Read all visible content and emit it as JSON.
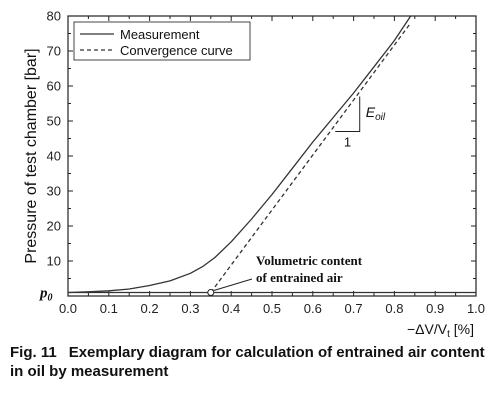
{
  "chart_data": {
    "type": "line",
    "xlabel": "−ΔV/V",
    "xlabel_sub": "t",
    "xlabel_unit": "[%]",
    "ylabel": "Pressure of test chamber [bar]",
    "xlim": [
      0.0,
      1.0
    ],
    "ylim": [
      0,
      80
    ],
    "x_ticks": [
      "0.0",
      "0.1",
      "0.2",
      "0.3",
      "0.4",
      "0.5",
      "0.6",
      "0.7",
      "0.8",
      "0.9",
      "1.0"
    ],
    "y_ticks": [
      "10",
      "20",
      "30",
      "40",
      "50",
      "60",
      "70",
      "80"
    ],
    "p0_label": "p",
    "p0_sub": "0",
    "p0_value": 1.0,
    "grid": false,
    "legend_position": "top-left",
    "series": [
      {
        "name": "Measurement",
        "style": "solid",
        "x": [
          0.0,
          0.05,
          0.1,
          0.15,
          0.2,
          0.25,
          0.3,
          0.33,
          0.36,
          0.4,
          0.45,
          0.5,
          0.55,
          0.6,
          0.65,
          0.7,
          0.75,
          0.8,
          0.84
        ],
        "y": [
          1.0,
          1.2,
          1.5,
          2.0,
          3.0,
          4.3,
          6.5,
          8.4,
          11.0,
          15.5,
          22.0,
          29.0,
          36.5,
          44.0,
          51.0,
          58.0,
          65.5,
          73.0,
          80.0
        ]
      },
      {
        "name": "Convergence curve",
        "style": "dashed",
        "x": [
          0.35,
          0.84
        ],
        "y": [
          1.0,
          78.0
        ]
      }
    ],
    "baseline": {
      "y": 1.0,
      "x": [
        0.0,
        1.0
      ]
    },
    "annotations": [
      {
        "lines": [
          "Volumetric content",
          "of entrained air"
        ],
        "points_to": [
          0.35,
          1.0
        ]
      }
    ],
    "slope_triangle": {
      "label": "E",
      "label_sub": "oil",
      "run_label": "1",
      "x": [
        0.655,
        0.715
      ],
      "y": [
        47.0,
        57.0
      ]
    }
  },
  "caption": {
    "label": "Fig. 11",
    "text": "Exemplary diagram for calculation of entrained air content in oil by measurement"
  }
}
